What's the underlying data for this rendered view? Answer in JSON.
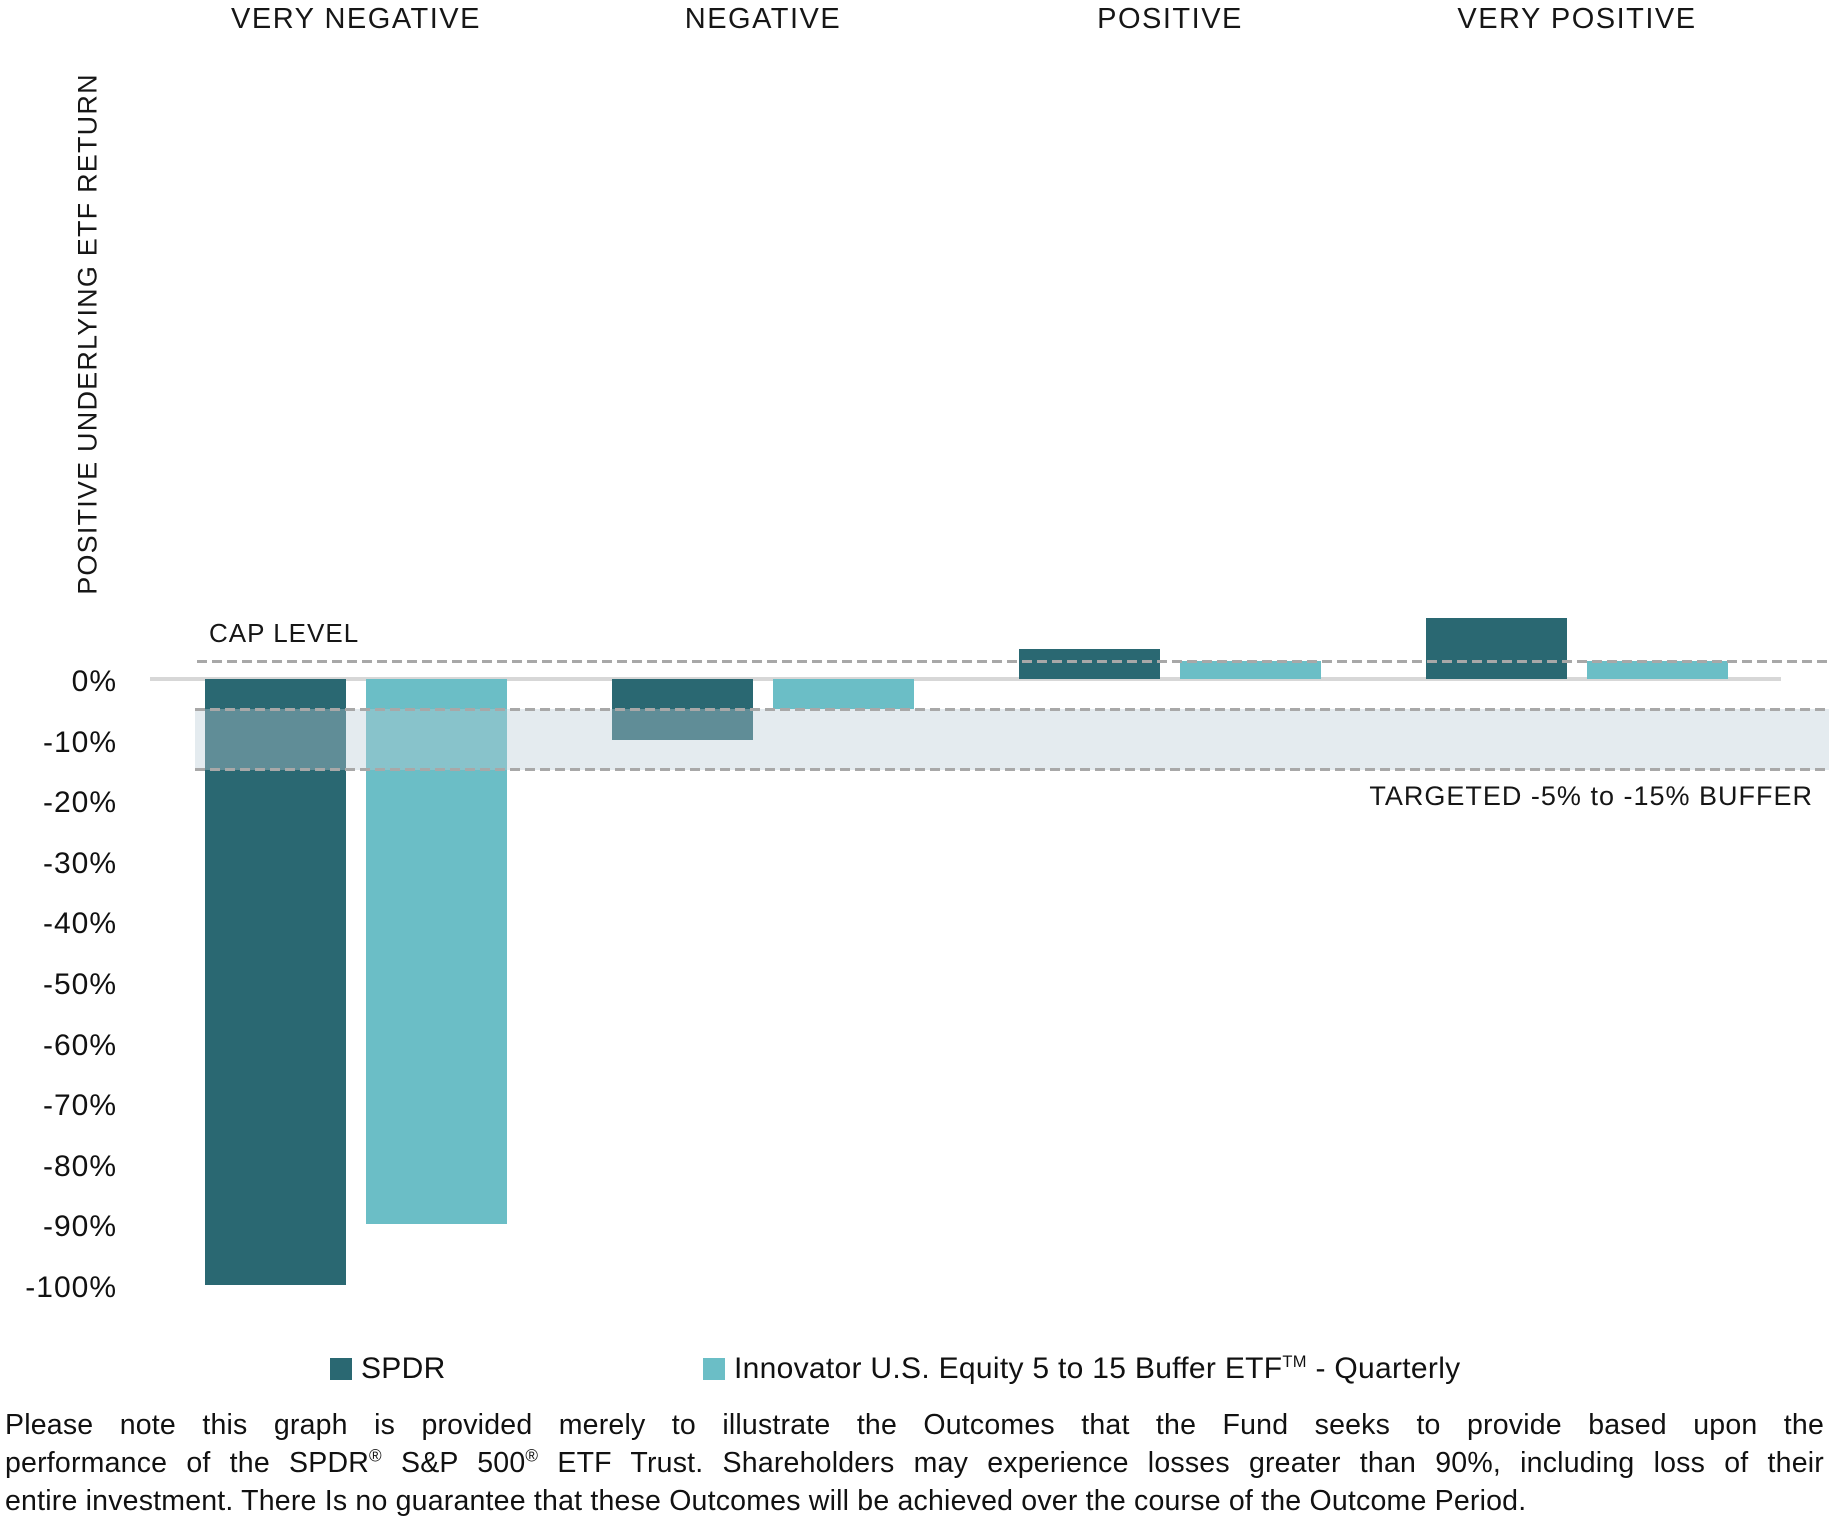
{
  "chart_data": {
    "type": "bar",
    "title": "",
    "xlabel": "",
    "ylabel": "POSITIVE UNDERLYING ETF RETURN",
    "categories": [
      "VERY NEGATIVE",
      "NEGATIVE",
      "POSITIVE",
      "VERY POSITIVE"
    ],
    "series": [
      {
        "name": "SPDR",
        "color": "#2A6872",
        "values": [
          -100,
          -10,
          5,
          10
        ]
      },
      {
        "name": "Innovator U.S. Equity 5 to 15 Buffer ETF™ - Quarterly",
        "color": "#6BBEC6",
        "values": [
          -90,
          -5,
          3,
          3
        ]
      }
    ],
    "value_unit": "percent",
    "y_ticks": [
      {
        "label": "0%",
        "value": 0
      },
      {
        "label": "-10%",
        "value": -10
      },
      {
        "label": "-20%",
        "value": -20
      },
      {
        "label": "-30%",
        "value": -30
      },
      {
        "label": "-40%",
        "value": -40
      },
      {
        "label": "-50%",
        "value": -50
      },
      {
        "label": "-60%",
        "value": -60
      },
      {
        "label": "-70%",
        "value": -70
      },
      {
        "label": "-80%",
        "value": -80
      },
      {
        "label": "-90%",
        "value": -90
      },
      {
        "label": "-100%",
        "value": -100
      }
    ],
    "ylim": [
      -103,
      12
    ],
    "grid": false,
    "legend_position": "bottom",
    "cap_level": {
      "label": "CAP LEVEL",
      "value": 3
    },
    "buffer_band": {
      "label": "TARGETED -5% to -15% BUFFER",
      "from": -5,
      "to": -15
    }
  },
  "legend": {
    "spdr_label": "SPDR",
    "innovator_pre": "Innovator U.S. Equity 5 to 15 Buffer ETF",
    "innovator_tm": "TM",
    "innovator_post": " - Quarterly"
  },
  "footnote": {
    "line1": "Please note this graph is provided merely to illustrate the Outcomes that the Fund seeks to provide based upon the",
    "line2": {
      "s1": "performance of the SPDR",
      "sup1": "®",
      "s2": " S&P 500",
      "sup2": "®",
      "s3": " ETF Trust. Shareholders may experience losses greater than 90%, including loss of their"
    },
    "line3": "entire investment. There Is no guarantee that these Outcomes will be achieved over the course of the Outcome Period."
  }
}
